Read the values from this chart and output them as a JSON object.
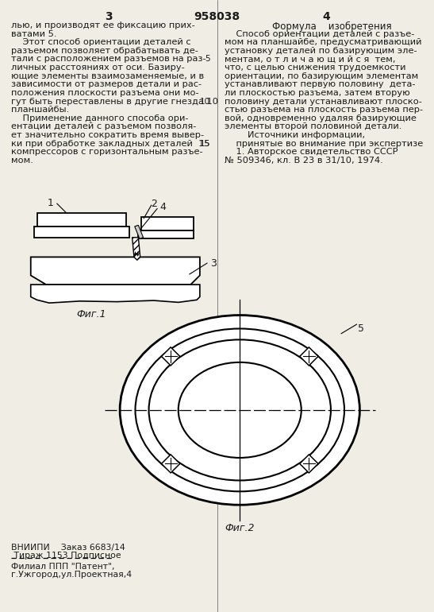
{
  "bg_color": "#f0ede4",
  "title_number": "958038",
  "col_left_number": "3",
  "col_right_number": "4",
  "col_left_lines": [
    "лью, и производят ее фиксацию прих-",
    "ватами 5.",
    "    Этот способ ориентации деталей с",
    "разъемом позволяет обрабатывать де-",
    "тали с расположением разъемов на раз-",
    "личных расстояниях от оси. Базиру-",
    "ющие элементы взаимозаменяемые, и в",
    "зависимости от размеров детали и рас-",
    "положения плоскости разъема они мо-",
    "гут быть переставлены в другие гнезда 10",
    "планшайбы.",
    "    Применение данного способа ори-",
    "ентации деталей с разъемом позволя-",
    "ет значительно сократить время вывер-",
    "ки при обработке закладных деталей  15",
    "компрессоров с горизонтальным разъе-",
    "мом."
  ],
  "col_right_header": "Формула    изобретения",
  "col_right_lines": [
    "    Способ ориентации деталей с разъе-",
    "мом на планшайбе, предусматривающий",
    "установку деталей по базирующим эле-",
    "ментам, о т л и ч а ю щ и й с я  тем,",
    "что, с целью снижения трудоемкости",
    "ориентации, по базирующим элементам",
    "устанавливают первую половину  дета-",
    "ли плоскостью разъема, затем вторую",
    "половину детали устанавливают плоско-",
    "стью разъема на плоскость разъема пер-",
    "вой, одновременно удаляя базирующие",
    "элементы второй половиной детали.",
    "        Источники информации,",
    "    принятые во внимание при экспертизе",
    "    1. Авторское свидетельство СССР",
    "№ 509346, кл. В 23 в 31/10, 1974."
  ],
  "footer_left_line1": "ВНИИПИ    Заказ 6683/14",
  "footer_left_line2": " Тираж 1153 Подписное",
  "footer_left_line3": "Филиал ППП \"Патент\",",
  "footer_left_line4": "г.Ужгород,ул.Проектная,4",
  "fig1_label": "Фиг.1",
  "fig2_label": "Фиг.2",
  "line_numbers": [
    "5",
    "10",
    "15"
  ],
  "line_number_rows": [
    4,
    9,
    14
  ]
}
